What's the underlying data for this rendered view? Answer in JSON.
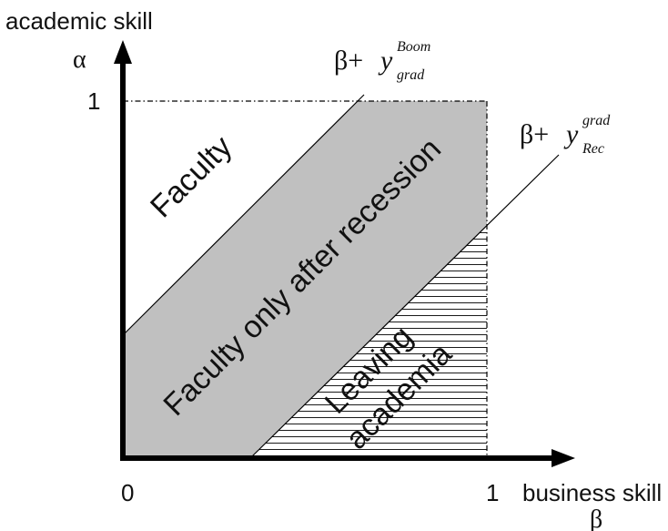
{
  "axes": {
    "y_title": "academic skill",
    "y_symbol": "α",
    "x_title": "business skill",
    "x_symbol": "β",
    "origin_label": "0",
    "x_max_label": "1",
    "y_max_label": "1"
  },
  "lines": {
    "boom": {
      "base": "β+",
      "var": "y",
      "sup": "Boom",
      "sub": "grad"
    },
    "rec": {
      "base": "β+",
      "var": "y",
      "sup": "Rec",
      "sub": "grad"
    }
  },
  "regions": {
    "faculty": "Faculty",
    "after_recession": "Faculty only after recession",
    "leaving_line1": "Leaving",
    "leaving_line2": "academia"
  },
  "colors": {
    "shade": "#c0c0c0",
    "ink": "#000000"
  }
}
